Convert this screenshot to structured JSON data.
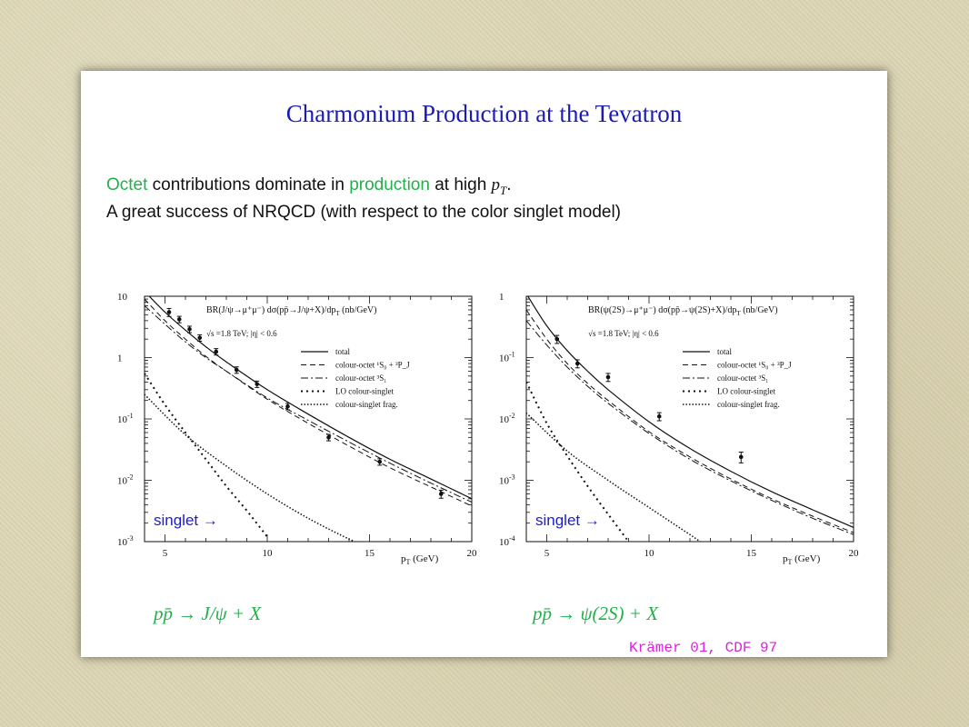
{
  "slide": {
    "title": "Charmonium Production at the Tevatron",
    "line1": {
      "w1": "Octet",
      "w2": " contributions dominate in ",
      "w3": "production",
      "w4": " at high ",
      "w5": "p",
      "w6": "T",
      "w7": "."
    },
    "line2": "A great success of NRQCD (with respect to the color singlet model)",
    "reaction_left": "pp̄ → J/ψ + X",
    "reaction_right": "pp̄ → ψ(2S) + X",
    "citation": "Krämer 01, CDF 97",
    "colors": {
      "title": "#1c1cb4",
      "highlight": "#22b04b",
      "singlet": "#1c1cd0",
      "citation": "#e020e0"
    }
  },
  "chart_data": [
    {
      "type": "line",
      "title": "BR(J/ψ→μ⁺μ⁻) dσ(pp̄→J/ψ+X)/dp",
      "title_sub": "T",
      "title_units": " (nb/GeV)",
      "subtitle": "√s =1.8 TeV; |η| < 0.6",
      "xlabel": "p",
      "xlabel_sub": "T",
      "xlabel_units": " (GeV)",
      "ylabel": "",
      "xlim": [
        4,
        20
      ],
      "ylim": [
        0.001,
        10
      ],
      "yscale": "log",
      "xticks": [
        5,
        10,
        15,
        20
      ],
      "yticks": [
        {
          "v": 10,
          "label": "10",
          "sup": ""
        },
        {
          "v": 1,
          "label": "1",
          "sup": ""
        },
        {
          "v": 0.1,
          "label": "10",
          "sup": "-1"
        },
        {
          "v": 0.01,
          "label": "10",
          "sup": "-2"
        },
        {
          "v": 0.001,
          "label": "10",
          "sup": "-3"
        }
      ],
      "legend_position": "top-right",
      "annotation": "singlet →",
      "series": [
        {
          "name": "total",
          "dash": "",
          "width": 1.2,
          "x": [
            4,
            5,
            6,
            7,
            8,
            10,
            12,
            14,
            16,
            18,
            20
          ],
          "y": [
            12,
            5.5,
            2.8,
            1.5,
            0.85,
            0.3,
            0.12,
            0.05,
            0.022,
            0.0105,
            0.005
          ]
        },
        {
          "name": "colour-octet ¹S₀ + ³P_J",
          "dash": "6,4",
          "width": 1,
          "x": [
            4,
            5,
            6,
            7,
            8,
            10,
            12,
            14,
            16,
            18,
            20
          ],
          "y": [
            9,
            4.0,
            2.0,
            1.05,
            0.6,
            0.21,
            0.085,
            0.036,
            0.016,
            0.0078,
            0.0038
          ]
        },
        {
          "name": "colour-octet ³S₁",
          "dash": "8,3,2,3",
          "width": 1,
          "x": [
            4,
            5,
            6,
            7,
            8,
            10,
            12,
            14,
            16,
            18,
            20
          ],
          "y": [
            7,
            3.5,
            1.8,
            1.0,
            0.6,
            0.22,
            0.095,
            0.042,
            0.019,
            0.009,
            0.0044
          ]
        },
        {
          "name": "LO colour-singlet",
          "dash": "2,4",
          "width": 2,
          "x": [
            4,
            5,
            6,
            7,
            8,
            9,
            10
          ],
          "y": [
            0.55,
            0.17,
            0.06,
            0.022,
            0.008,
            0.0032,
            0.0012
          ]
        },
        {
          "name": "colour-singlet frag.",
          "dash": "1.5,2",
          "width": 1.5,
          "x": [
            4,
            6,
            8,
            10,
            12,
            14,
            15
          ],
          "y": [
            0.25,
            0.055,
            0.017,
            0.006,
            0.0024,
            0.0011,
            0.0008
          ]
        }
      ],
      "data_points": [
        {
          "x": 5.2,
          "y": 5.5,
          "err": 0.15
        },
        {
          "x": 5.7,
          "y": 4.2,
          "err": 0.12
        },
        {
          "x": 6.2,
          "y": 2.9,
          "err": 0.12
        },
        {
          "x": 6.7,
          "y": 2.1,
          "err": 0.12
        },
        {
          "x": 7.5,
          "y": 1.25,
          "err": 0.12
        },
        {
          "x": 8.5,
          "y": 0.63,
          "err": 0.12
        },
        {
          "x": 9.5,
          "y": 0.37,
          "err": 0.12
        },
        {
          "x": 11,
          "y": 0.16,
          "err": 0.12
        },
        {
          "x": 13,
          "y": 0.05,
          "err": 0.12
        },
        {
          "x": 15.5,
          "y": 0.02,
          "err": 0.12
        },
        {
          "x": 18.5,
          "y": 0.006,
          "err": 0.15
        }
      ]
    },
    {
      "type": "line",
      "title": "BR(ψ(2S)→μ⁺μ⁻) dσ(pp̄→ψ(2S)+X)/dp",
      "title_sub": "T",
      "title_units": " (nb/GeV)",
      "subtitle": "√s =1.8 TeV; |η| < 0.6",
      "xlabel": "p",
      "xlabel_sub": "T",
      "xlabel_units": " (GeV)",
      "ylabel": "",
      "xlim": [
        4,
        20
      ],
      "ylim": [
        0.0001,
        1
      ],
      "yscale": "log",
      "xticks": [
        5,
        10,
        15,
        20
      ],
      "yticks": [
        {
          "v": 1,
          "label": "1",
          "sup": ""
        },
        {
          "v": 0.1,
          "label": "10",
          "sup": "-1"
        },
        {
          "v": 0.01,
          "label": "10",
          "sup": "-2"
        },
        {
          "v": 0.001,
          "label": "10",
          "sup": "-3"
        },
        {
          "v": 0.0001,
          "label": "10",
          "sup": "-4"
        }
      ],
      "legend_position": "top-right",
      "annotation": "singlet →",
      "series": [
        {
          "name": "total",
          "dash": "",
          "width": 1.2,
          "x": [
            4,
            5,
            6,
            7,
            8,
            10,
            12,
            14,
            16,
            18,
            20
          ],
          "y": [
            1.1,
            0.33,
            0.13,
            0.06,
            0.03,
            0.009,
            0.0033,
            0.0014,
            0.00065,
            0.00033,
            0.00017
          ]
        },
        {
          "name": "colour-octet ¹S₀ + ³P_J",
          "dash": "6,4",
          "width": 1,
          "x": [
            4,
            5,
            6,
            7,
            8,
            10,
            12,
            14,
            16,
            18,
            20
          ],
          "y": [
            0.6,
            0.2,
            0.08,
            0.038,
            0.02,
            0.0062,
            0.0024,
            0.00105,
            0.0005,
            0.00026,
            0.00014
          ]
        },
        {
          "name": "colour-octet ³S₁",
          "dash": "8,3,2,3",
          "width": 1,
          "x": [
            4,
            5,
            6,
            7,
            8,
            10,
            12,
            14,
            16,
            18,
            20
          ],
          "y": [
            0.4,
            0.16,
            0.07,
            0.034,
            0.018,
            0.0058,
            0.0022,
            0.00098,
            0.00047,
            0.00024,
            0.00013
          ]
        },
        {
          "name": "LO colour-singlet",
          "dash": "2,4",
          "width": 2,
          "x": [
            4,
            5,
            6,
            7,
            8,
            9
          ],
          "y": [
            0.04,
            0.0085,
            0.0025,
            0.0008,
            0.00028,
            0.0001
          ]
        },
        {
          "name": "colour-singlet frag.",
          "dash": "1.5,2",
          "width": 1.5,
          "x": [
            4,
            6,
            8,
            10,
            12,
            12.5
          ],
          "y": [
            0.0125,
            0.003,
            0.001,
            0.00036,
            0.00013,
            0.0001
          ]
        }
      ],
      "data_points": [
        {
          "x": 5.5,
          "y": 0.2,
          "err": 0.15
        },
        {
          "x": 6.5,
          "y": 0.08,
          "err": 0.15
        },
        {
          "x": 8.0,
          "y": 0.048,
          "err": 0.15
        },
        {
          "x": 10.5,
          "y": 0.011,
          "err": 0.15
        },
        {
          "x": 14.5,
          "y": 0.0024,
          "err": 0.2
        }
      ]
    }
  ]
}
